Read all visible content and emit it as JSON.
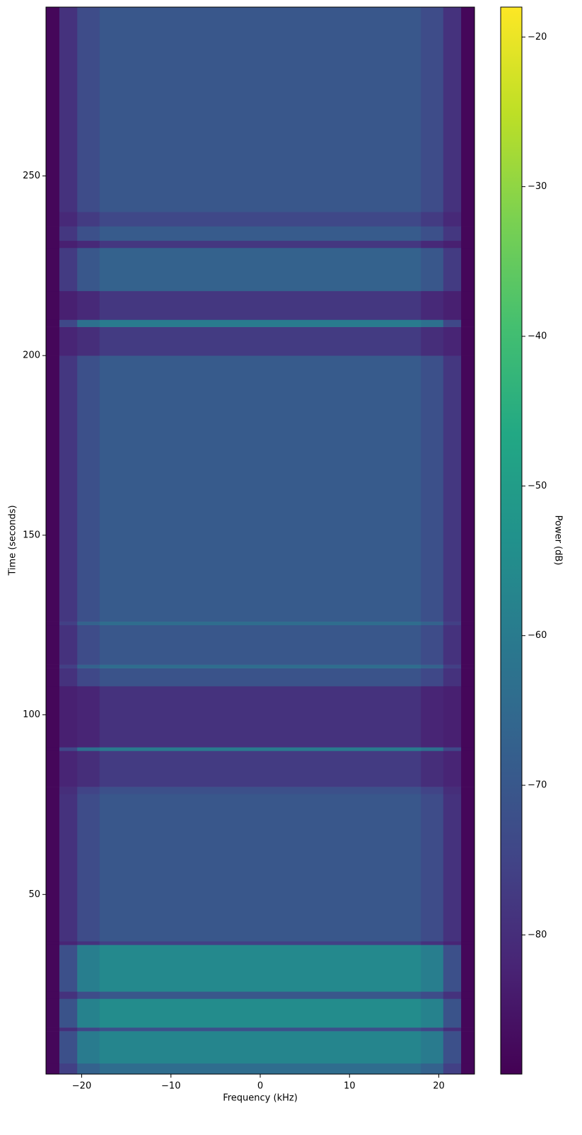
{
  "chart_data": {
    "type": "heatmap",
    "xlabel": "Frequency (kHz)",
    "ylabel": "Time (seconds)",
    "colorbar_label": "Power (dB)",
    "colormap": "viridis",
    "xlim": [
      -24,
      24
    ],
    "ylim": [
      0,
      297
    ],
    "clim": [
      -89.3,
      -18
    ],
    "xticks": [
      {
        "value": -20,
        "label": "−20"
      },
      {
        "value": -10,
        "label": "−10"
      },
      0,
      10,
      20
    ],
    "yticks": [
      50,
      100,
      150,
      200,
      250
    ],
    "cticks": [
      {
        "value": -80,
        "label": "−80"
      },
      {
        "value": -70,
        "label": "−70"
      },
      {
        "value": -60,
        "label": "−60"
      },
      {
        "value": -50,
        "label": "−50"
      },
      {
        "value": -40,
        "label": "−40"
      },
      {
        "value": -30,
        "label": "−30"
      },
      {
        "value": -20,
        "label": "−20"
      }
    ],
    "x_edges": [
      -24,
      -22.5,
      -20.5,
      -18,
      18,
      20.5,
      22.5,
      24
    ],
    "y_edges": [
      0,
      3,
      12,
      13,
      21,
      23,
      36,
      37,
      78,
      80,
      90,
      91,
      108,
      113,
      114,
      125,
      126,
      200,
      208,
      210,
      218,
      230,
      232,
      236,
      240,
      297
    ],
    "z": [
      [
        -88,
        -76,
        -67,
        -64,
        -67,
        -76,
        -88
      ],
      [
        -88,
        -72,
        -60,
        -57,
        -60,
        -72,
        -88
      ],
      [
        -88,
        -80,
        -75,
        -72,
        -75,
        -80,
        -88
      ],
      [
        -88,
        -71,
        -58,
        -55,
        -58,
        -71,
        -88
      ],
      [
        -88,
        -79,
        -73,
        -70,
        -73,
        -79,
        -88
      ],
      [
        -88,
        -72,
        -59,
        -56,
        -59,
        -72,
        -88
      ],
      [
        -88,
        -82,
        -79,
        -76,
        -79,
        -82,
        -88
      ],
      [
        -88,
        -79,
        -73,
        -70,
        -73,
        -79,
        -88
      ],
      [
        -88,
        -80,
        -75,
        -72,
        -75,
        -80,
        -88
      ],
      [
        -88,
        -82,
        -80,
        -77,
        -80,
        -82,
        -88
      ],
      [
        -88,
        -74,
        -63,
        -60,
        -63,
        -74,
        -88
      ],
      [
        -88,
        -83,
        -82,
        -79,
        -82,
        -83,
        -88
      ],
      [
        -88,
        -79,
        -74,
        -71,
        -74,
        -79,
        -88
      ],
      [
        -88,
        -76,
        -67,
        -64,
        -67,
        -76,
        -88
      ],
      [
        -88,
        -79,
        -73,
        -70,
        -73,
        -79,
        -88
      ],
      [
        -88,
        -76,
        -67,
        -64,
        -67,
        -76,
        -88
      ],
      [
        -88,
        -78,
        -72,
        -69,
        -72,
        -78,
        -88
      ],
      [
        -88,
        -82,
        -80,
        -77,
        -80,
        -82,
        -88
      ],
      [
        -88,
        -74,
        -63,
        -60,
        -63,
        -74,
        -88
      ],
      [
        -88,
        -83,
        -81,
        -78,
        -81,
        -83,
        -88
      ],
      [
        -88,
        -77,
        -70,
        -67,
        -70,
        -77,
        -88
      ],
      [
        -88,
        -83,
        -81,
        -78,
        -81,
        -83,
        -88
      ],
      [
        -88,
        -78,
        -72,
        -69,
        -72,
        -78,
        -88
      ],
      [
        -88,
        -81,
        -77,
        -74,
        -77,
        -81,
        -88
      ],
      [
        -88,
        -79,
        -73,
        -70,
        -73,
        -79,
        -88
      ]
    ]
  }
}
